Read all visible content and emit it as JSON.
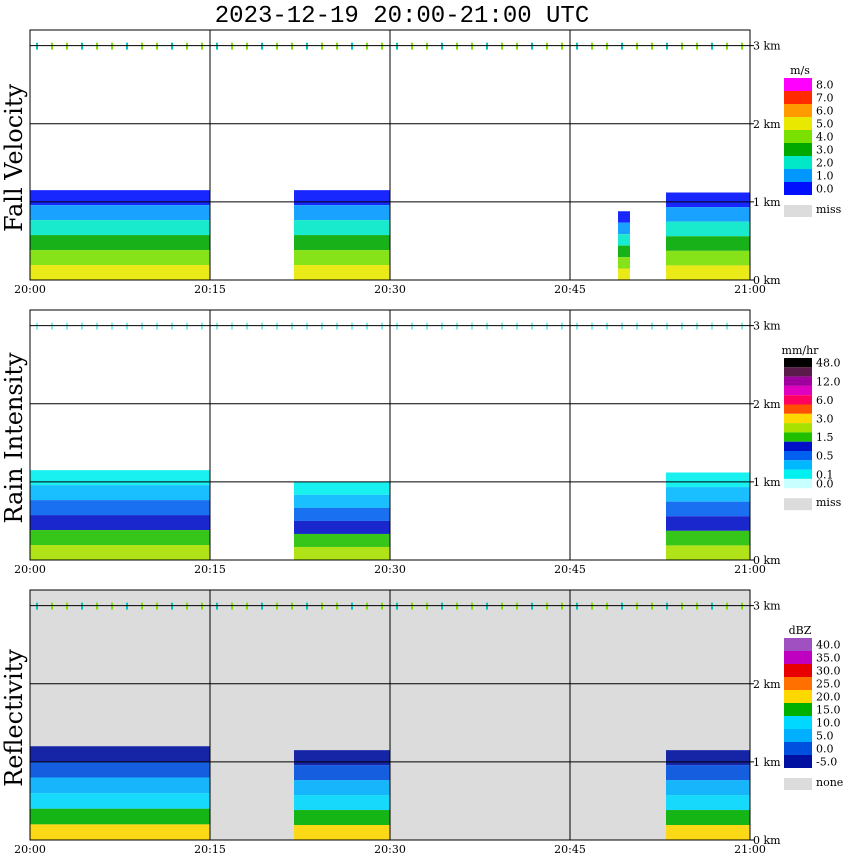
{
  "chart_data": [
    {
      "type": "heatmap",
      "title": "2023-12-19   20:00-21:00 UTC",
      "ylabel": "Fall Velocity",
      "unit": "m/s",
      "x_ticks": [
        "20:00",
        "20:15",
        "20:30",
        "20:45",
        "21:00"
      ],
      "y_ticks": [
        "0 km",
        "1 km",
        "2 km",
        "3 km"
      ],
      "ylim_km": [
        0,
        3.2
      ],
      "grid": true,
      "missing_label": "miss",
      "background": "#ffffff",
      "colorbar": [
        {
          "label": "8.0",
          "color": "#ff00ff"
        },
        {
          "label": "7.0",
          "color": "#ff2a00"
        },
        {
          "label": "6.0",
          "color": "#ff9a00"
        },
        {
          "label": "5.0",
          "color": "#e8e800"
        },
        {
          "label": "4.0",
          "color": "#79e000"
        },
        {
          "label": "3.0",
          "color": "#00a800"
        },
        {
          "label": "2.0",
          "color": "#00e8c8"
        },
        {
          "label": "1.0",
          "color": "#0098ff"
        },
        {
          "label": "0.0",
          "color": "#0010ff"
        }
      ],
      "echo_tops_km": [
        {
          "start": "20:00",
          "end": "20:15",
          "top": 1.15
        },
        {
          "start": "20:22",
          "end": "20:30",
          "top": 1.15
        },
        {
          "start": "20:49",
          "end": "20:50",
          "top": 0.88
        },
        {
          "start": "20:53",
          "end": "21:00",
          "top": 1.12
        }
      ]
    },
    {
      "type": "heatmap",
      "title": "",
      "ylabel": "Rain Intensity",
      "unit": "mm/hr",
      "x_ticks": [
        "20:00",
        "20:15",
        "20:30",
        "20:45",
        "21:00"
      ],
      "y_ticks": [
        "0 km",
        "1 km",
        "2 km",
        "3 km"
      ],
      "ylim_km": [
        0,
        3.2
      ],
      "grid": true,
      "missing_label": "miss",
      "background": "#ffffff",
      "colorbar": [
        {
          "label": "48.0",
          "color": "#000000"
        },
        {
          "label": "",
          "color": "#5a1a4a"
        },
        {
          "label": "12.0",
          "color": "#a000a0"
        },
        {
          "label": "",
          "color": "#e000c0"
        },
        {
          "label": "6.0",
          "color": "#ff0060"
        },
        {
          "label": "",
          "color": "#ff5000"
        },
        {
          "label": "3.0",
          "color": "#ffd800"
        },
        {
          "label": "",
          "color": "#a8e000"
        },
        {
          "label": "1.5",
          "color": "#20c000"
        },
        {
          "label": "",
          "color": "#0010c8"
        },
        {
          "label": "0.5",
          "color": "#0060f0"
        },
        {
          "label": "",
          "color": "#00b8ff"
        },
        {
          "label": "0.1",
          "color": "#00f0f0"
        },
        {
          "label": "0.0",
          "color": "#c8ffff"
        }
      ],
      "echo_tops_km": [
        {
          "start": "20:00",
          "end": "20:15",
          "top": 1.15
        },
        {
          "start": "20:22",
          "end": "20:30",
          "top": 1.0
        },
        {
          "start": "20:53",
          "end": "21:00",
          "top": 1.12
        }
      ]
    },
    {
      "type": "heatmap",
      "title": "",
      "ylabel": "Reflectivity",
      "unit": "dBZ",
      "x_ticks": [
        "20:00",
        "20:15",
        "20:30",
        "20:45",
        "21:00"
      ],
      "y_ticks": [
        "0 km",
        "1 km",
        "2 km",
        "3 km"
      ],
      "ylim_km": [
        0,
        3.2
      ],
      "grid": true,
      "missing_label": "none",
      "background": "#dcdcdc",
      "colorbar": [
        {
          "label": "40.0",
          "color": "#a050c0"
        },
        {
          "label": "35.0",
          "color": "#c000c0"
        },
        {
          "label": "30.0",
          "color": "#e80000"
        },
        {
          "label": "25.0",
          "color": "#ff7000"
        },
        {
          "label": "20.0",
          "color": "#ffd800"
        },
        {
          "label": "15.0",
          "color": "#00b000"
        },
        {
          "label": "10.0",
          "color": "#00d8ff"
        },
        {
          "label": "5.0",
          "color": "#00b0ff"
        },
        {
          "label": "0.0",
          "color": "#0050e0"
        },
        {
          "label": "-5.0",
          "color": "#0010a0"
        }
      ],
      "echo_tops_km": [
        {
          "start": "20:00",
          "end": "20:15",
          "top": 1.2
        },
        {
          "start": "20:22",
          "end": "20:30",
          "top": 1.15
        },
        {
          "start": "20:53",
          "end": "21:00",
          "top": 1.15
        }
      ]
    }
  ]
}
